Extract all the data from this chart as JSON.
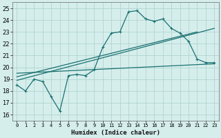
{
  "xlabel": "Humidex (Indice chaleur)",
  "bg_color": "#d5eeec",
  "grid_color": "#b0d4d0",
  "line_color": "#1a7070",
  "xlim": [
    -0.5,
    23.5
  ],
  "ylim": [
    15.5,
    25.5
  ],
  "xticks": [
    0,
    1,
    2,
    3,
    4,
    5,
    6,
    7,
    8,
    9,
    10,
    11,
    12,
    13,
    14,
    15,
    16,
    17,
    18,
    19,
    20,
    21,
    22,
    23
  ],
  "yticks": [
    16,
    17,
    18,
    19,
    20,
    21,
    22,
    23,
    24,
    25
  ],
  "main_x": [
    0,
    1,
    2,
    3,
    4,
    5,
    6,
    7,
    8,
    9,
    10,
    11,
    12,
    13,
    14,
    15,
    16,
    17,
    18,
    19,
    20,
    21,
    22,
    23
  ],
  "main_y": [
    18.5,
    18.0,
    19.0,
    18.8,
    17.5,
    16.3,
    19.3,
    19.4,
    19.3,
    19.8,
    21.7,
    22.9,
    23.0,
    24.7,
    24.8,
    24.1,
    23.9,
    24.1,
    23.3,
    22.9,
    22.2,
    20.7,
    20.4,
    20.4
  ],
  "trend1_x": [
    0,
    23
  ],
  "trend1_y": [
    18.9,
    23.3
  ],
  "trend2_x": [
    0,
    21
  ],
  "trend2_y": [
    19.2,
    23.0
  ],
  "trend3_x": [
    0,
    23
  ],
  "trend3_y": [
    19.5,
    20.3
  ]
}
